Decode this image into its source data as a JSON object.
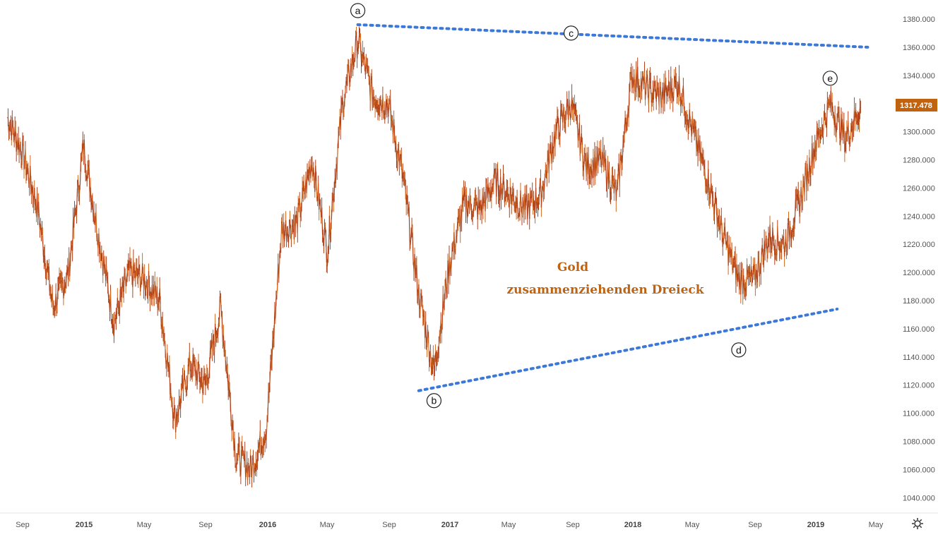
{
  "chart_data": {
    "type": "line",
    "title": "",
    "instrument": "Gold",
    "annotation": [
      "Gold",
      "zusammenziehenden Dreieck"
    ],
    "last_price": "1317.478",
    "x_labels": [
      "Sep",
      "2015",
      "May",
      "Sep",
      "2016",
      "May",
      "Sep",
      "2017",
      "May",
      "Sep",
      "2018",
      "May",
      "Sep",
      "2019",
      "May"
    ],
    "x_labels_bold": [
      false,
      true,
      false,
      false,
      true,
      false,
      false,
      true,
      false,
      false,
      true,
      false,
      false,
      true,
      false
    ],
    "y_ticks": [
      "1380.000",
      "1360.000",
      "1340.000",
      "1320.000",
      "1300.000",
      "1280.000",
      "1260.000",
      "1240.000",
      "1220.000",
      "1200.000",
      "1180.000",
      "1160.000",
      "1140.000",
      "1120.000",
      "1100.000",
      "1080.000",
      "1060.000",
      "1040.000"
    ],
    "ylim": [
      1030,
      1390
    ],
    "wave_labels": [
      {
        "label": "a",
        "date": "2016-07",
        "value": 1375
      },
      {
        "label": "b",
        "date": "2016-12",
        "value": 1123
      },
      {
        "label": "c",
        "date": "2017-09",
        "value": 1358
      },
      {
        "label": "d",
        "date": "2018-08",
        "value": 1160
      },
      {
        "label": "e",
        "date": "2019-02",
        "value": 1347
      }
    ],
    "trendlines": [
      {
        "name": "upper",
        "points": [
          [
            "2016-07",
            1376
          ],
          [
            "2019-04",
            1360
          ]
        ],
        "style": "dotted",
        "color": "#3c78d8"
      },
      {
        "name": "lower",
        "points": [
          [
            "2016-11",
            1116
          ],
          [
            "2019-02",
            1174
          ]
        ],
        "style": "dotted",
        "color": "#3c78d8"
      }
    ],
    "series": [
      {
        "points": [
          [
            "2014-08",
            1310
          ],
          [
            "2014-09",
            1285
          ],
          [
            "2014-10",
            1245
          ],
          [
            "2014-11",
            1175
          ],
          [
            "2014-12",
            1200
          ],
          [
            "2015-01",
            1290
          ],
          [
            "2015-02",
            1225
          ],
          [
            "2015-03",
            1165
          ],
          [
            "2015-04",
            1200
          ],
          [
            "2015-05",
            1195
          ],
          [
            "2015-06",
            1180
          ],
          [
            "2015-07",
            1095
          ],
          [
            "2015-08",
            1135
          ],
          [
            "2015-09",
            1120
          ],
          [
            "2015-10",
            1175
          ],
          [
            "2015-11",
            1070
          ],
          [
            "2015-12",
            1060
          ],
          [
            "2016-01",
            1090
          ],
          [
            "2016-02",
            1230
          ],
          [
            "2016-03",
            1235
          ],
          [
            "2016-04",
            1280
          ],
          [
            "2016-05",
            1215
          ],
          [
            "2016-06",
            1320
          ],
          [
            "2016-07",
            1365
          ],
          [
            "2016-08",
            1325
          ],
          [
            "2016-09",
            1320
          ],
          [
            "2016-10",
            1265
          ],
          [
            "2016-11",
            1185
          ],
          [
            "2016-12",
            1130
          ],
          [
            "2017-01",
            1205
          ],
          [
            "2017-02",
            1250
          ],
          [
            "2017-03",
            1245
          ],
          [
            "2017-04",
            1265
          ],
          [
            "2017-05",
            1255
          ],
          [
            "2017-06",
            1245
          ],
          [
            "2017-07",
            1255
          ],
          [
            "2017-08",
            1300
          ],
          [
            "2017-09",
            1320
          ],
          [
            "2017-10",
            1275
          ],
          [
            "2017-11",
            1280
          ],
          [
            "2017-12",
            1255
          ],
          [
            "2018-01",
            1340
          ],
          [
            "2018-02",
            1330
          ],
          [
            "2018-03",
            1325
          ],
          [
            "2018-04",
            1335
          ],
          [
            "2018-05",
            1300
          ],
          [
            "2018-06",
            1265
          ],
          [
            "2018-07",
            1225
          ],
          [
            "2018-08",
            1195
          ],
          [
            "2018-09",
            1195
          ],
          [
            "2018-10",
            1225
          ],
          [
            "2018-11",
            1220
          ],
          [
            "2018-12",
            1250
          ],
          [
            "2019-01",
            1290
          ],
          [
            "2019-02",
            1320
          ],
          [
            "2019-03",
            1295
          ],
          [
            "2019-04",
            1317.478
          ]
        ]
      }
    ],
    "colors": {
      "line": "#b0411a",
      "line_alt": "#d2691e",
      "trend": "#3c78d8",
      "annotation": "#c0620e",
      "price_tag": "#c0620e"
    }
  },
  "icons": {
    "settings": "gear-icon"
  }
}
